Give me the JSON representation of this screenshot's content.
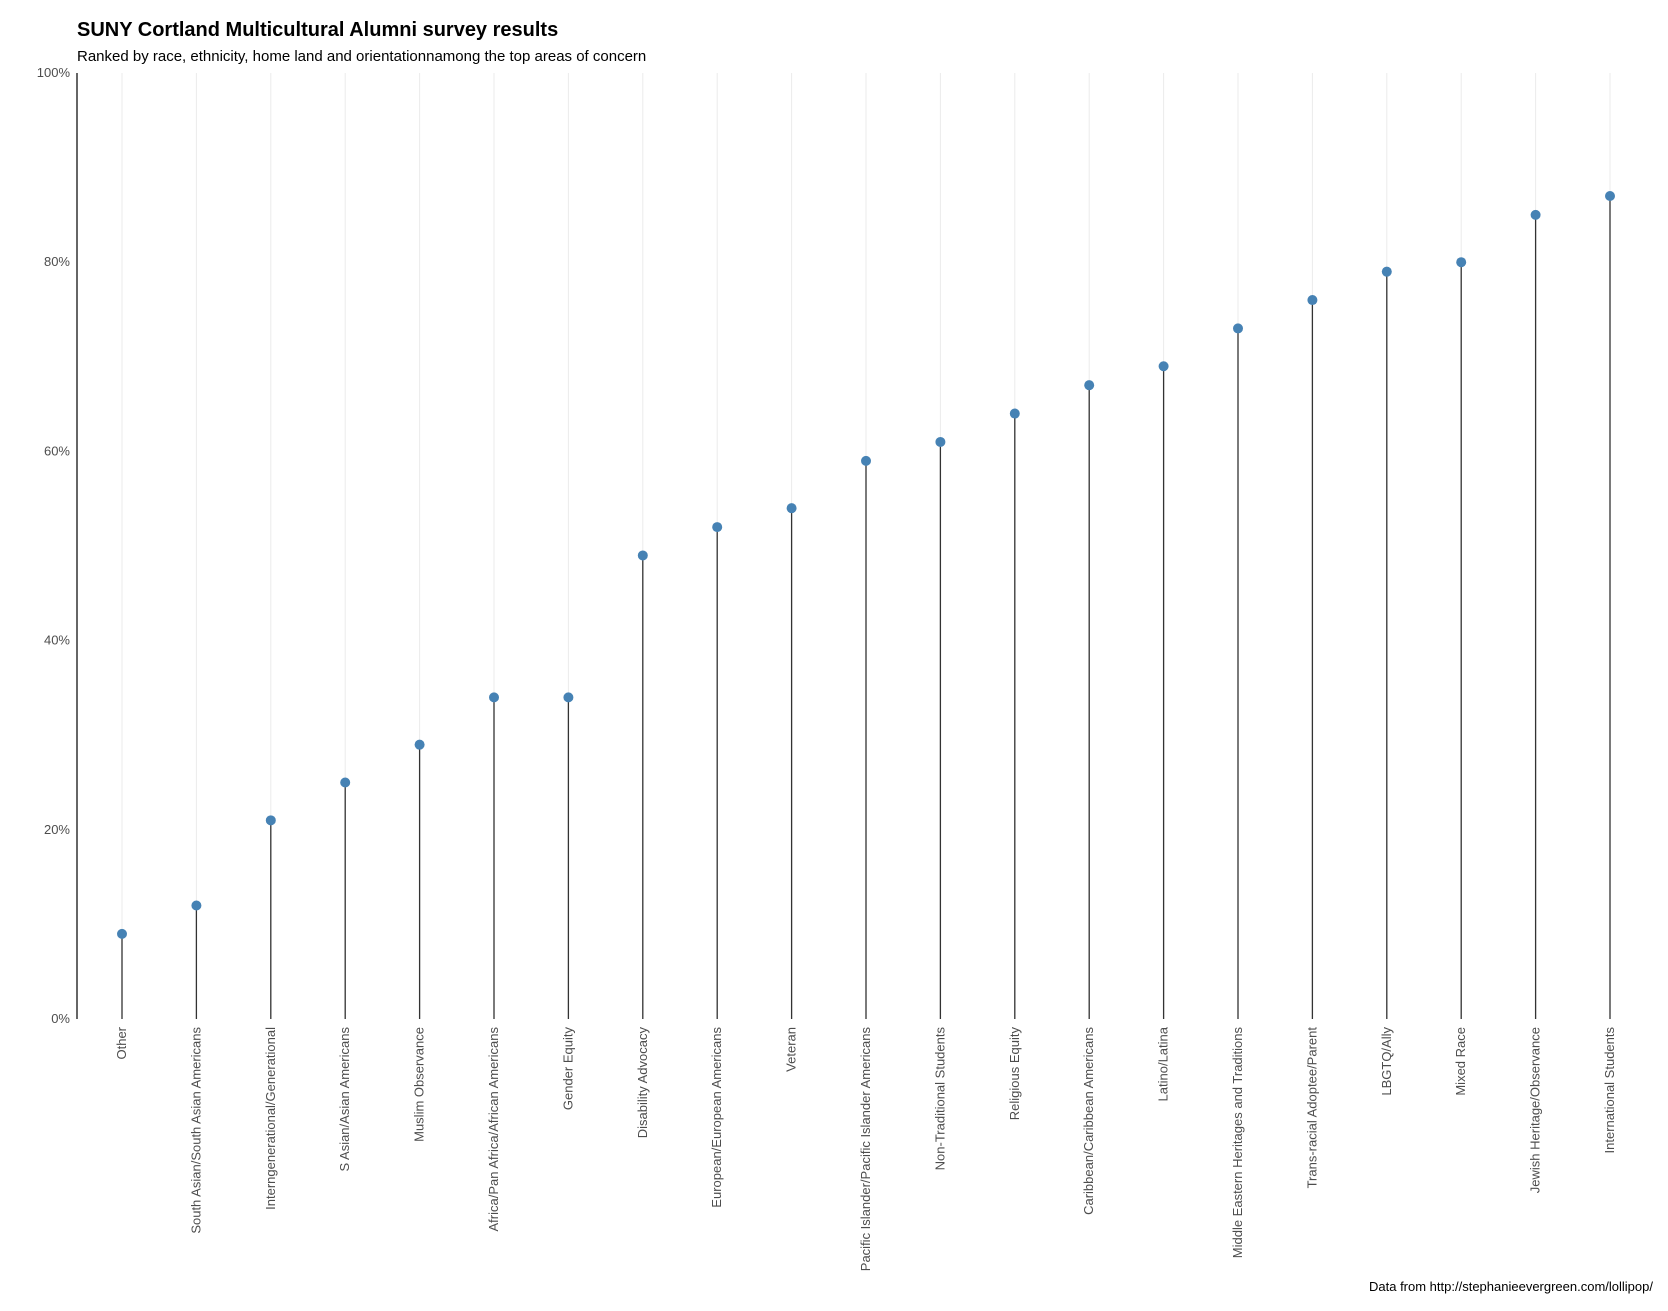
{
  "chart_data": {
    "type": "lollipop",
    "title": "SUNY Cortland Multicultural Alumni survey results",
    "subtitle": "Ranked by race, ethnicity, home land and orientationnamong the top areas of concern",
    "caption": "Data from http://stephanieevergreen.com/lollipop/",
    "xlabel": "",
    "ylabel": "",
    "ylim": [
      0,
      1
    ],
    "y_ticks": [
      0,
      0.2,
      0.4,
      0.6,
      0.8,
      1.0
    ],
    "y_tick_labels": [
      "0%",
      "20%",
      "40%",
      "60%",
      "80%",
      "100%"
    ],
    "grid": {
      "major_x": true,
      "major_y": false
    },
    "legend": "none",
    "point_color": "#4682b4",
    "stem_color": "#333333",
    "categories": [
      "Other",
      "South Asian/South Asian Americans",
      "Interngenerational/Generational",
      "S Asian/Asian Americans",
      "Muslim Observance",
      "Africa/Pan Africa/African Americans",
      "Gender Equity",
      "Disability Advocacy",
      "European/European Americans",
      "Veteran",
      "Pacific Islander/Pacific Islander Americans",
      "Non-Traditional Students",
      "Religious Equity",
      "Caribbean/Caribbean Americans",
      "Latino/Latina",
      "Middle Eastern Heritages and Traditions",
      "Trans-racial Adoptee/Parent",
      "LBGTQ/Ally",
      "Mixed Race",
      "Jewish Heritage/Observance",
      "International Students"
    ],
    "values": [
      0.09,
      0.12,
      0.21,
      0.25,
      0.29,
      0.34,
      0.34,
      0.49,
      0.52,
      0.54,
      0.59,
      0.61,
      0.64,
      0.67,
      0.69,
      0.73,
      0.76,
      0.79,
      0.8,
      0.85,
      0.87
    ]
  }
}
